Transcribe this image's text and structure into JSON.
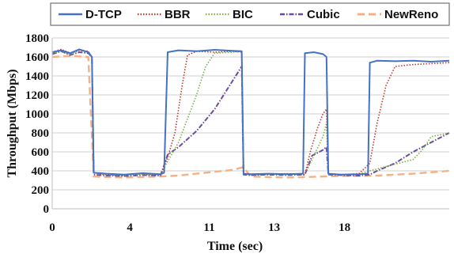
{
  "chart_data": {
    "type": "line",
    "xlabel": "Time (sec)",
    "ylabel": "Throughput (Mbps)",
    "ylim": [
      0,
      1800
    ],
    "yticks": [
      0,
      200,
      400,
      600,
      800,
      1000,
      1200,
      1400,
      1600,
      1800
    ],
    "xlim": [
      0,
      22
    ],
    "xticks": [
      {
        "value": 0,
        "label": "0"
      },
      {
        "value": 4.3,
        "label": "4"
      },
      {
        "value": 8.7,
        "label": "11"
      },
      {
        "value": 12.3,
        "label": "13"
      },
      {
        "value": 16.2,
        "label": "18"
      }
    ],
    "grid": "horizontal",
    "legend_position": "top",
    "series": [
      {
        "name": "D-TCP",
        "color": "#4472C4",
        "style": "solid",
        "x": [
          0,
          0.5,
          1,
          1.5,
          2,
          2.2,
          2.3,
          3,
          4,
          5,
          6,
          6.2,
          6.4,
          7,
          8,
          9,
          10,
          10.5,
          10.6,
          11,
          12,
          13,
          13.9,
          14,
          14.5,
          15,
          15.2,
          15.3,
          16,
          17,
          17.5,
          17.6,
          18,
          19,
          20,
          21,
          22
        ],
        "y": [
          1650,
          1670,
          1640,
          1680,
          1650,
          1600,
          380,
          370,
          360,
          375,
          365,
          380,
          1650,
          1670,
          1660,
          1675,
          1665,
          1660,
          370,
          365,
          370,
          365,
          370,
          1640,
          1650,
          1630,
          1600,
          370,
          360,
          365,
          370,
          1540,
          1560,
          1555,
          1560,
          1550,
          1560
        ]
      },
      {
        "name": "BBR",
        "color": "#C0392B",
        "style": "dotted",
        "x": [
          0,
          0.5,
          1,
          1.5,
          2,
          2.2,
          2.3,
          3,
          4,
          5,
          6,
          6.4,
          6.8,
          7.2,
          7.5,
          8,
          9,
          10,
          10.5,
          10.6,
          11,
          12,
          13,
          14,
          14.3,
          14.7,
          15,
          15.2,
          15.3,
          16,
          17,
          17.6,
          18,
          18.5,
          19,
          20,
          21,
          22
        ],
        "y": [
          1650,
          1680,
          1640,
          1670,
          1660,
          1600,
          380,
          360,
          355,
          370,
          360,
          540,
          800,
          1300,
          1620,
          1660,
          1650,
          1660,
          1650,
          370,
          360,
          365,
          370,
          360,
          600,
          850,
          1000,
          1050,
          370,
          360,
          370,
          480,
          900,
          1300,
          1500,
          1520,
          1530,
          1540
        ]
      },
      {
        "name": "BIC",
        "color": "#7CB342",
        "style": "dotted",
        "x": [
          0,
          0.5,
          1,
          1.5,
          2,
          2.2,
          2.3,
          3,
          4,
          5,
          6,
          6.4,
          7,
          7.5,
          8,
          8.5,
          9,
          10,
          10.5,
          10.6,
          11,
          12,
          13,
          14,
          14.4,
          15,
          15.2,
          15.3,
          16,
          17,
          17.6,
          18,
          19,
          20,
          20.5,
          21,
          22
        ],
        "y": [
          1640,
          1660,
          1630,
          1670,
          1650,
          1600,
          380,
          360,
          350,
          365,
          355,
          500,
          700,
          950,
          1200,
          1500,
          1640,
          1650,
          1660,
          370,
          360,
          365,
          370,
          360,
          520,
          760,
          900,
          370,
          360,
          365,
          400,
          420,
          470,
          520,
          620,
          760,
          800
        ]
      },
      {
        "name": "Cubic",
        "color": "#6A4C9C",
        "style": "dashdot",
        "x": [
          0,
          0.5,
          1,
          1.5,
          2,
          2.2,
          2.3,
          3,
          4,
          5,
          6,
          6.4,
          7,
          8,
          9,
          10,
          10.5,
          10.6,
          11,
          12,
          13,
          14,
          14.4,
          15,
          15.2,
          15.3,
          16,
          17,
          17.6,
          18,
          19,
          20,
          21,
          22
        ],
        "y": [
          1630,
          1660,
          1620,
          1650,
          1640,
          1600,
          360,
          350,
          345,
          355,
          350,
          570,
          650,
          820,
          1050,
          1350,
          1500,
          360,
          355,
          360,
          355,
          360,
          560,
          620,
          650,
          360,
          355,
          350,
          360,
          400,
          480,
          600,
          700,
          800
        ]
      },
      {
        "name": "NewReno",
        "color": "#F4B183",
        "style": "dashed",
        "x": [
          0,
          1,
          2,
          2.3,
          3,
          4,
          5,
          6,
          7,
          8,
          9,
          10,
          10.6,
          11,
          12,
          13,
          14,
          15,
          16,
          17,
          18,
          19,
          20,
          21,
          22
        ],
        "y": [
          1600,
          1610,
          1600,
          340,
          335,
          330,
          335,
          340,
          350,
          370,
          390,
          410,
          440,
          340,
          335,
          330,
          335,
          340,
          345,
          345,
          350,
          360,
          370,
          385,
          400
        ]
      }
    ]
  }
}
